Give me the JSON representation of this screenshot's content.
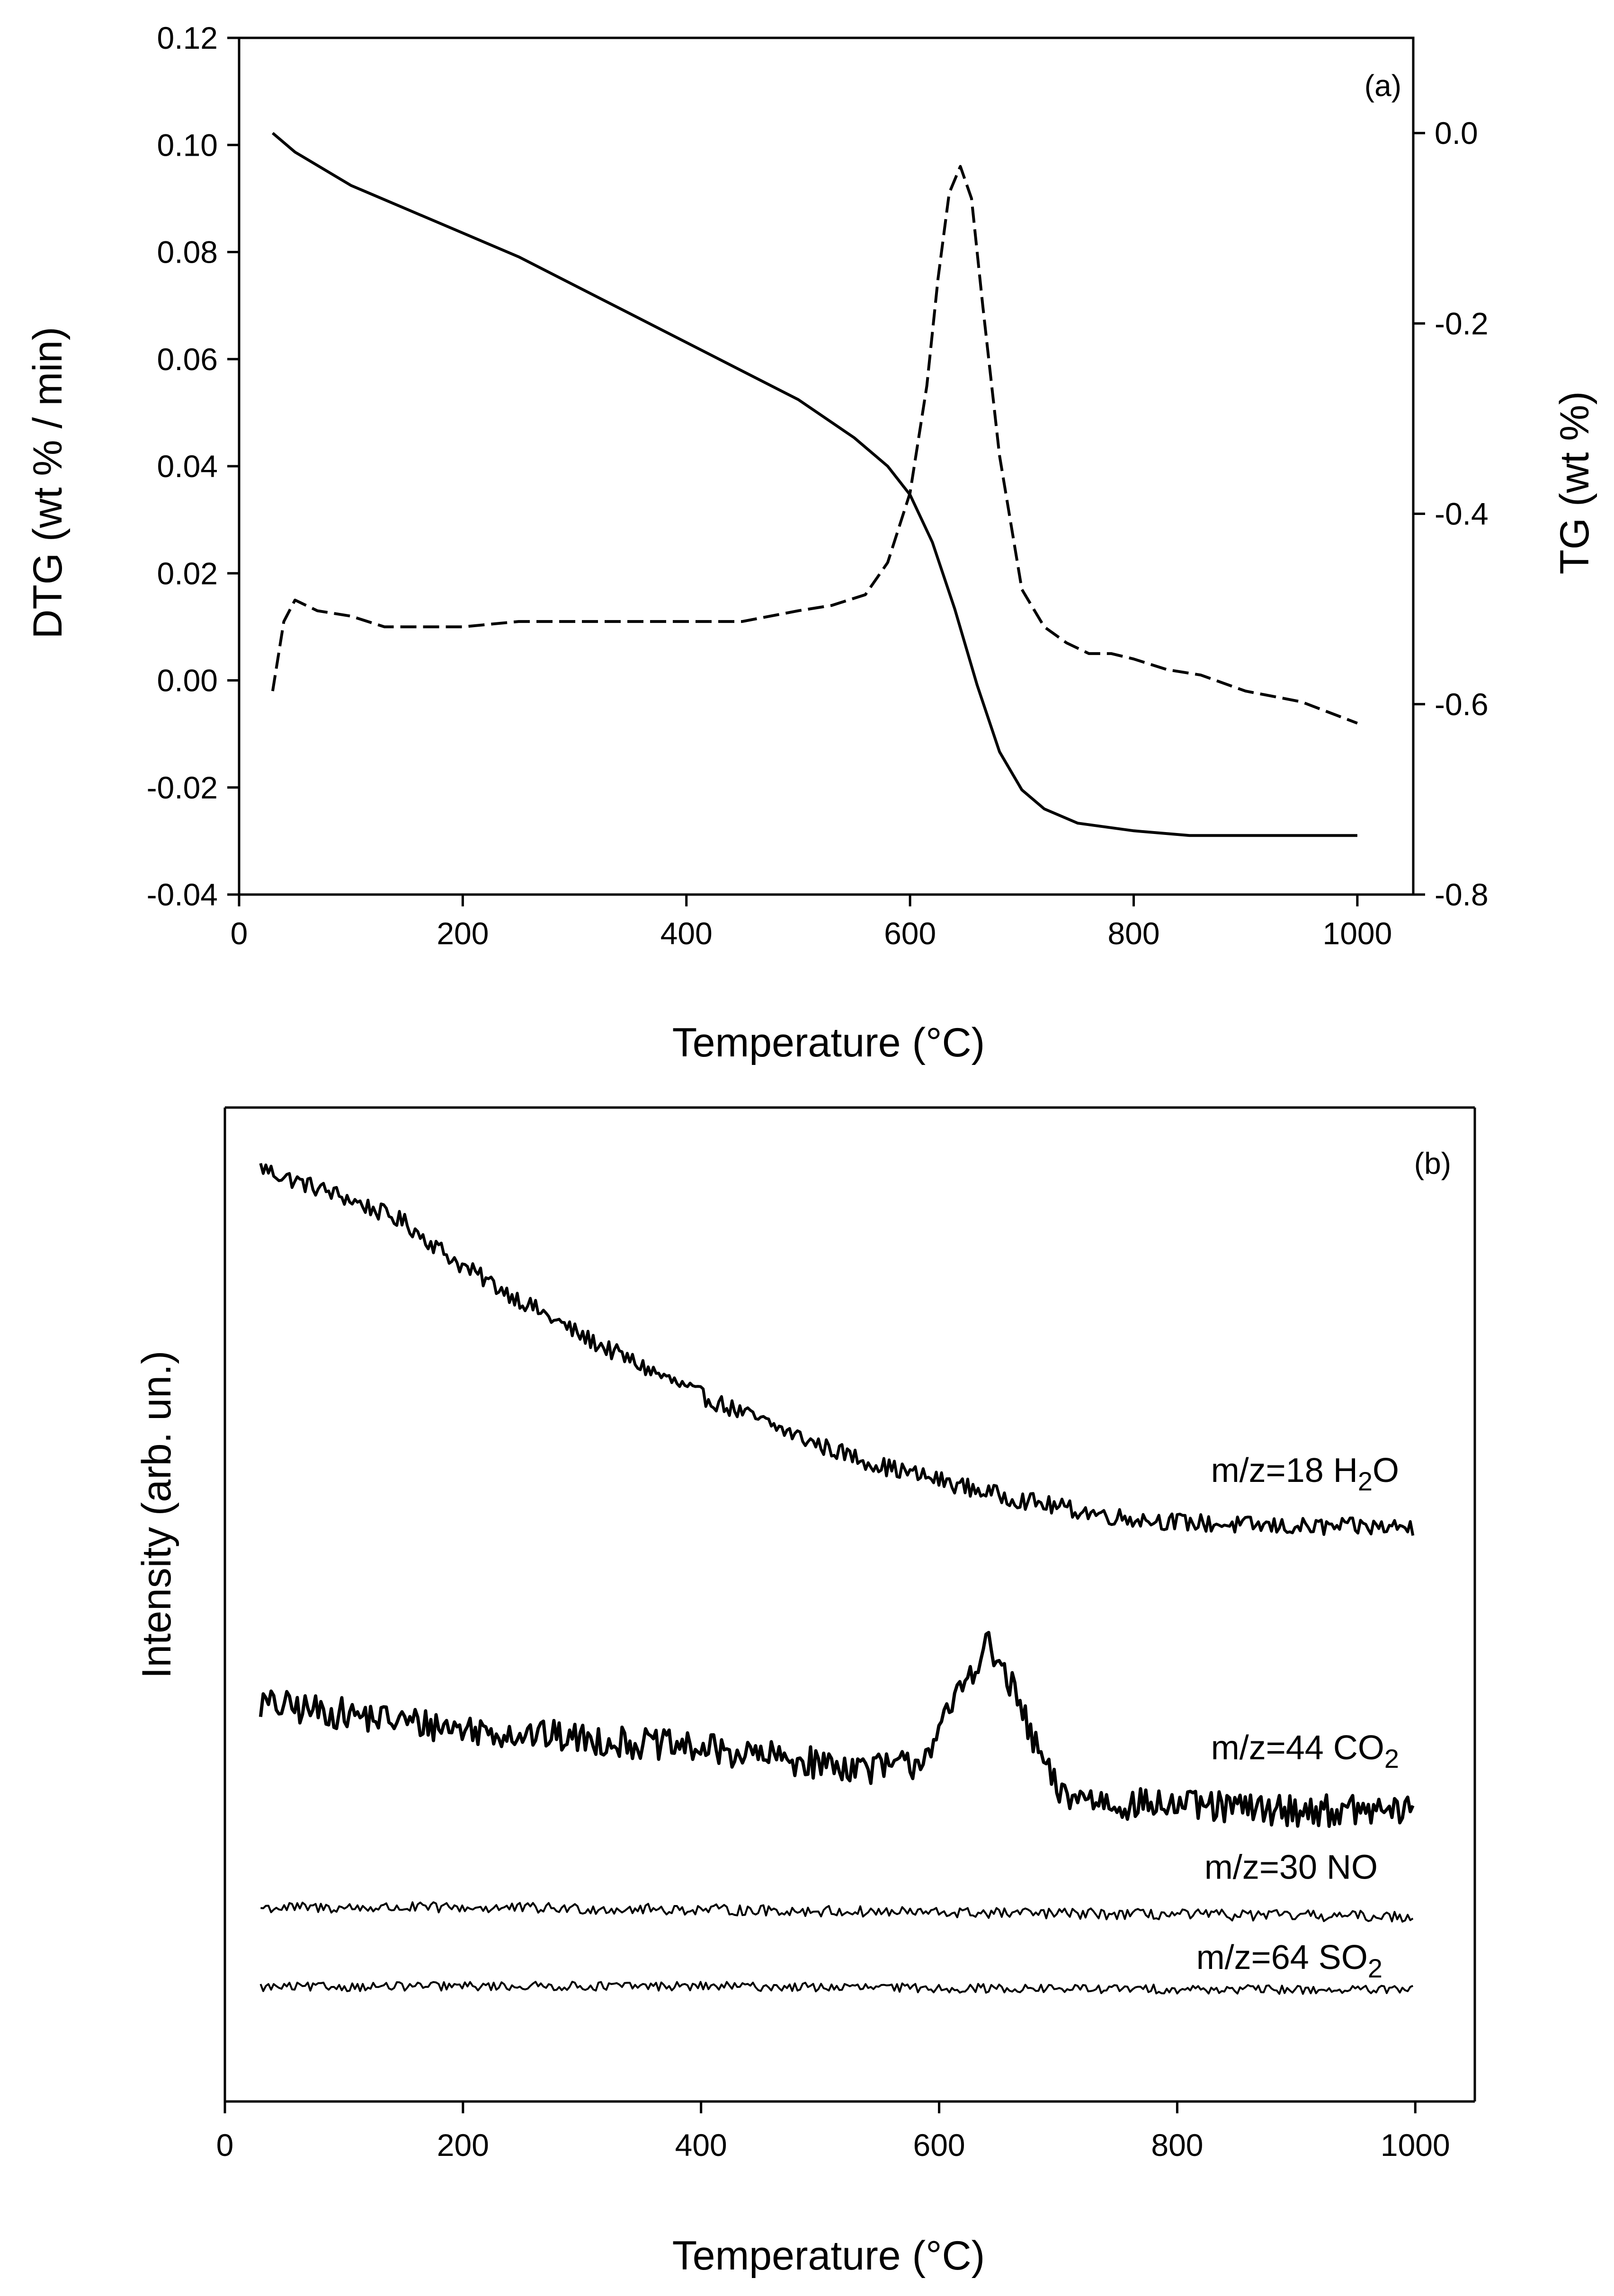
{
  "chart_data": [
    {
      "type": "line",
      "panel_label": "(a)",
      "xlabel": "Temperature (°C)",
      "ylabel": "DTG (wt % / min)",
      "y2label": "TG (wt %)",
      "xlim": [
        0,
        1050
      ],
      "ylim": [
        -0.04,
        0.12
      ],
      "y2lim": [
        -0.8,
        0.1
      ],
      "x_ticks": [
        "0",
        "200",
        "400",
        "600",
        "800",
        "1000"
      ],
      "y_ticks": [
        "-0.04",
        "-0.02",
        "0.00",
        "0.02",
        "0.04",
        "0.06",
        "0.08",
        "0.10",
        "0.12"
      ],
      "y2_ticks": [
        "-0.8",
        "-0.6",
        "-0.4",
        "-0.2",
        "0.0"
      ],
      "series": [
        {
          "name": "DTG",
          "axis": "left",
          "style": "dashed",
          "x": [
            30,
            40,
            50,
            70,
            100,
            130,
            150,
            200,
            250,
            300,
            350,
            400,
            450,
            500,
            530,
            560,
            580,
            600,
            615,
            625,
            635,
            645,
            655,
            665,
            680,
            700,
            720,
            740,
            760,
            780,
            800,
            830,
            860,
            900,
            950,
            1000
          ],
          "y": [
            -0.002,
            0.011,
            0.015,
            0.013,
            0.012,
            0.01,
            0.01,
            0.01,
            0.011,
            0.011,
            0.011,
            0.011,
            0.011,
            0.013,
            0.014,
            0.016,
            0.022,
            0.035,
            0.055,
            0.075,
            0.091,
            0.096,
            0.09,
            0.07,
            0.042,
            0.017,
            0.01,
            0.007,
            0.005,
            0.005,
            0.004,
            0.002,
            0.001,
            -0.002,
            -0.004,
            -0.008
          ]
        },
        {
          "name": "TG",
          "axis": "right",
          "style": "solid",
          "x": [
            30,
            50,
            100,
            150,
            200,
            250,
            300,
            350,
            400,
            450,
            500,
            550,
            580,
            600,
            620,
            640,
            660,
            680,
            700,
            720,
            750,
            800,
            850,
            900,
            950,
            1000
          ],
          "y": [
            0.0,
            -0.02,
            -0.055,
            -0.08,
            -0.105,
            -0.13,
            -0.16,
            -0.19,
            -0.22,
            -0.25,
            -0.28,
            -0.32,
            -0.35,
            -0.38,
            -0.43,
            -0.5,
            -0.58,
            -0.65,
            -0.69,
            -0.71,
            -0.725,
            -0.733,
            -0.738,
            -0.738,
            -0.738,
            -0.738
          ]
        }
      ]
    },
    {
      "type": "line",
      "panel_label": "(b)",
      "xlabel": "Temperature (°C)",
      "ylabel": "Intensity (arb. un.)",
      "xlim": [
        0,
        1050
      ],
      "ylim": [
        0,
        100
      ],
      "x_ticks": [
        "0",
        "200",
        "400",
        "600",
        "800",
        "1000"
      ],
      "series": [
        {
          "name": "m/z=18 H2O",
          "label_main": "m/z=18 H",
          "label_sub": "2",
          "label_tail": "O",
          "noise": 0.9,
          "x": [
            30,
            50,
            100,
            150,
            200,
            250,
            300,
            350,
            400,
            450,
            500,
            550,
            600,
            650,
            700,
            750,
            800,
            850,
            900,
            950,
            1000
          ],
          "y": [
            94,
            93,
            91,
            88.5,
            84,
            80.5,
            77,
            74,
            71,
            68.5,
            66,
            64,
            62.5,
            61,
            59.8,
            58.8,
            58.3,
            58,
            57.8,
            57.8,
            57.8
          ]
        },
        {
          "name": "m/z=44 CO2",
          "label_main": "m/z=44 CO",
          "label_sub": "2",
          "label_tail": "",
          "noise": 1.6,
          "x": [
            30,
            100,
            200,
            300,
            400,
            500,
            550,
            580,
            600,
            620,
            640,
            660,
            680,
            700,
            750,
            800,
            850,
            900,
            1000
          ],
          "y": [
            40,
            39,
            37.5,
            36.5,
            35.5,
            34,
            33.5,
            34,
            37,
            42,
            46,
            42,
            36,
            31,
            30,
            29.8,
            29.5,
            29.3,
            29.2
          ]
        },
        {
          "name": "m/z=30 NO",
          "label_main": "m/z=30 NO",
          "label_sub": "",
          "label_tail": "",
          "noise": 0.55,
          "x": [
            30,
            200,
            400,
            600,
            800,
            1000
          ],
          "y": [
            19.5,
            19.5,
            19.3,
            19.0,
            18.8,
            18.6
          ]
        },
        {
          "name": "m/z=64 SO2",
          "label_main": "m/z=64 SO",
          "label_sub": "2",
          "label_tail": "",
          "noise": 0.45,
          "x": [
            30,
            200,
            400,
            600,
            800,
            1000
          ],
          "y": [
            11.5,
            11.6,
            11.6,
            11.4,
            11.3,
            11.2
          ]
        }
      ]
    }
  ]
}
